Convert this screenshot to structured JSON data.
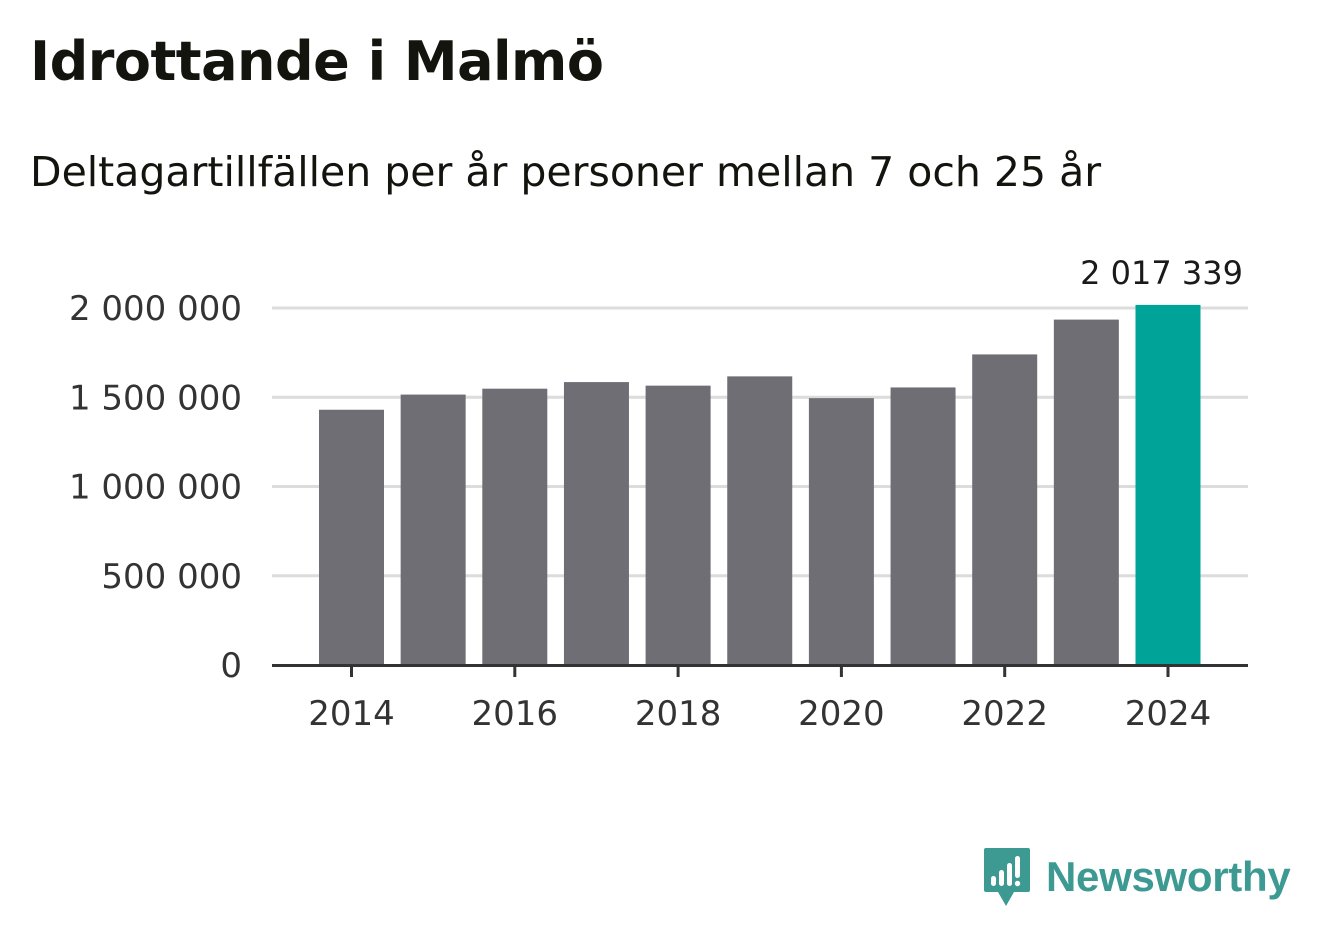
{
  "chart_data": {
    "type": "bar",
    "title": "Idrottande i Malmö",
    "subtitle": "Deltagartillfällen per år personer mellan 7 och 25 år",
    "categories": [
      "2014",
      "2015",
      "2016",
      "2017",
      "2018",
      "2019",
      "2020",
      "2021",
      "2022",
      "2023",
      "2024"
    ],
    "values": [
      1430000,
      1515000,
      1548000,
      1585000,
      1565000,
      1617000,
      1495000,
      1555000,
      1740000,
      1935000,
      2017339
    ],
    "ylim": [
      0,
      2000000
    ],
    "yticks": [
      0,
      500000,
      1000000,
      1500000,
      2000000
    ],
    "ytick_labels": [
      "0",
      "500 000",
      "1 000 000",
      "1 500 000",
      "2 000 000"
    ],
    "xtick_labels": [
      "2014",
      "2016",
      "2018",
      "2020",
      "2022",
      "2024"
    ],
    "annotation": {
      "category": "2024",
      "text": "2 017 339"
    },
    "xlabel": "",
    "ylabel": "",
    "grid": true,
    "colors": {
      "bar": "#6f6e74",
      "highlight": "#00a398",
      "grid": "#dcdcdc",
      "axis": "#333333"
    }
  },
  "brand": {
    "name": "Newsworthy",
    "icon": "newsworthy-logo-icon",
    "color": "#3d9a93"
  }
}
